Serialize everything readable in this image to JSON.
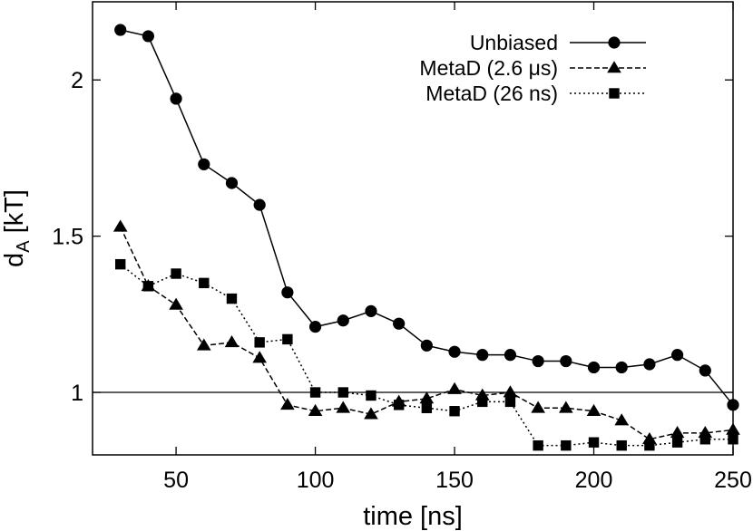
{
  "chart_data": {
    "type": "line",
    "title": "",
    "xlabel": "time [ns]",
    "ylabel_main": "d",
    "ylabel_sub": "A",
    "ylabel_rest": " [kT]",
    "xlim": [
      20,
      250
    ],
    "ylim": [
      0.8,
      2.25
    ],
    "x_ticks": [
      50,
      100,
      150,
      200,
      250
    ],
    "x_tick_labels": [
      "50",
      "100",
      "150",
      "200",
      "250"
    ],
    "y_ticks": [
      1.0,
      1.5,
      2.0
    ],
    "y_tick_labels": [
      "1",
      "1.5",
      "2"
    ],
    "reference_line": 1.0,
    "legend_position": "top-right",
    "series": [
      {
        "name": "Unbiased",
        "marker": "circle",
        "dash": "solid",
        "x": [
          30,
          40,
          50,
          60,
          70,
          80,
          90,
          100,
          110,
          120,
          130,
          140,
          150,
          160,
          170,
          180,
          190,
          200,
          210,
          220,
          230,
          240,
          250
        ],
        "y": [
          2.16,
          2.14,
          1.94,
          1.73,
          1.67,
          1.6,
          1.32,
          1.21,
          1.23,
          1.26,
          1.22,
          1.15,
          1.13,
          1.12,
          1.12,
          1.1,
          1.1,
          1.08,
          1.08,
          1.09,
          1.12,
          1.07,
          0.96
        ]
      },
      {
        "name": "MetaD (2.6 μs)",
        "marker": "triangle",
        "dash": "dashed",
        "x": [
          30,
          40,
          50,
          60,
          70,
          80,
          90,
          100,
          110,
          120,
          130,
          140,
          150,
          160,
          170,
          180,
          190,
          200,
          210,
          220,
          230,
          240,
          250
        ],
        "y": [
          1.53,
          1.34,
          1.28,
          1.15,
          1.16,
          1.11,
          0.96,
          0.94,
          0.95,
          0.93,
          0.97,
          0.98,
          1.01,
          0.99,
          1.0,
          0.95,
          0.95,
          0.94,
          0.91,
          0.85,
          0.87,
          0.87,
          0.88
        ]
      },
      {
        "name": "MetaD (26 ns)",
        "marker": "square",
        "dash": "dotted",
        "x": [
          30,
          40,
          50,
          60,
          70,
          80,
          90,
          100,
          110,
          120,
          130,
          140,
          150,
          160,
          170,
          180,
          190,
          200,
          210,
          220,
          230,
          240,
          250
        ],
        "y": [
          1.41,
          1.34,
          1.38,
          1.35,
          1.3,
          1.16,
          1.17,
          1.0,
          1.0,
          0.99,
          0.96,
          0.95,
          0.94,
          0.97,
          0.97,
          0.83,
          0.83,
          0.84,
          0.83,
          0.83,
          0.84,
          0.85,
          0.85
        ]
      }
    ]
  }
}
